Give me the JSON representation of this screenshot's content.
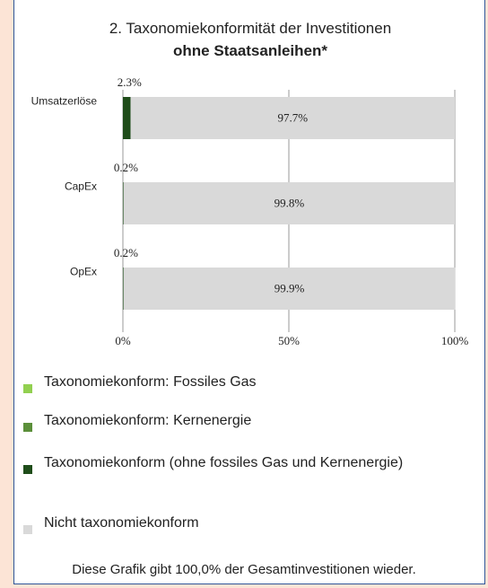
{
  "chart_data": {
    "type": "bar",
    "orientation": "horizontal",
    "stacked": true,
    "title": "2. Taxonomiekonformität der Investitionen",
    "subtitle": "ohne Staatsanleihen*",
    "categories": [
      "Umsatzerlöse",
      "CapEx",
      "OpEx"
    ],
    "series": [
      {
        "name": "Taxonomiekonform: Fossiles Gas",
        "color": "#92d050",
        "values": [
          0,
          0,
          0
        ]
      },
      {
        "name": "Taxonomiekonform: Kernenergie",
        "color": "#5b8f3a",
        "values": [
          0,
          0,
          0
        ]
      },
      {
        "name": "Taxonomiekonform (ohne fossiles Gas und Kernenergie)",
        "color": "#1f4d1a",
        "values": [
          2.3,
          0.2,
          0.2
        ],
        "value_labels": [
          "2.3%",
          "0.2%",
          "0.2%"
        ]
      },
      {
        "name": "Nicht taxonomiekonform",
        "color": "#d9d9d9",
        "values": [
          97.7,
          99.8,
          99.9
        ],
        "value_labels": [
          "97.7%",
          "99.8%",
          "99.9%"
        ]
      }
    ],
    "xlim": [
      0,
      100
    ],
    "xticks": [
      {
        "value": 0,
        "label": "0%"
      },
      {
        "value": 50,
        "label": "50%"
      },
      {
        "value": 100,
        "label": "100%"
      }
    ],
    "grid": true,
    "note": "Diese Grafik gibt 100,0% der Gesamtinvestitionen wieder."
  }
}
